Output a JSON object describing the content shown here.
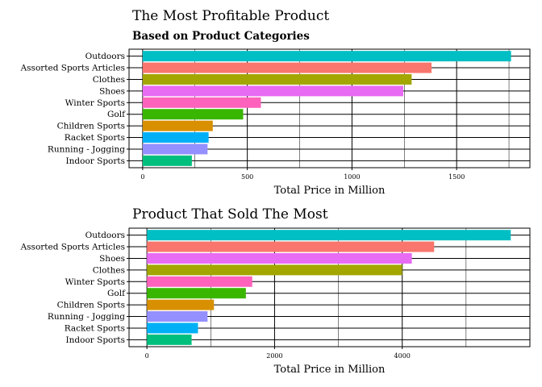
{
  "chart_data": [
    {
      "type": "bar",
      "orientation": "horizontal",
      "title": "The Most Profitable Product",
      "subtitle": "Based on Product Categories",
      "xlabel": "Total Price in Million",
      "ylabel": "",
      "categories": [
        "Outdoors",
        "Assorted Sports Articles",
        "Clothes",
        "Shoes",
        "Winter Sports",
        "Golf",
        "Children Sports",
        "Racket Sports",
        "Running - Jogging",
        "Indoor Sports"
      ],
      "values": [
        1760,
        1380,
        1285,
        1245,
        565,
        480,
        335,
        315,
        310,
        235
      ],
      "colors": [
        "#00BFC4",
        "#F8766D",
        "#A3A500",
        "#E76BF3",
        "#FF62BC",
        "#39B600",
        "#D89000",
        "#00B0F6",
        "#9590FF",
        "#00BF7D"
      ],
      "xlim": [
        -65,
        1850
      ],
      "xticks": [
        0,
        500,
        1000,
        1500
      ],
      "grid": true,
      "legend": "none"
    },
    {
      "type": "bar",
      "orientation": "horizontal",
      "title": "Product That Sold The Most",
      "subtitle": "",
      "xlabel": "Total Price in Million",
      "ylabel": "",
      "categories": [
        "Outdoors",
        "Assorted Sports Articles",
        "Shoes",
        "Clothes",
        "Winter Sports",
        "Golf",
        "Children Sports",
        "Running - Jogging",
        "Racket Sports",
        "Indoor Sports"
      ],
      "values": [
        5700,
        4500,
        4150,
        4000,
        1650,
        1550,
        1050,
        950,
        800,
        700
      ],
      "colors": [
        "#00BFC4",
        "#F8766D",
        "#E76BF3",
        "#A3A500",
        "#FF62BC",
        "#39B600",
        "#D89000",
        "#9590FF",
        "#00B0F6",
        "#00BF7D"
      ],
      "xlim": [
        -280,
        6000
      ],
      "xticks": [
        0,
        2000,
        4000
      ],
      "grid": true,
      "legend": "none"
    }
  ]
}
